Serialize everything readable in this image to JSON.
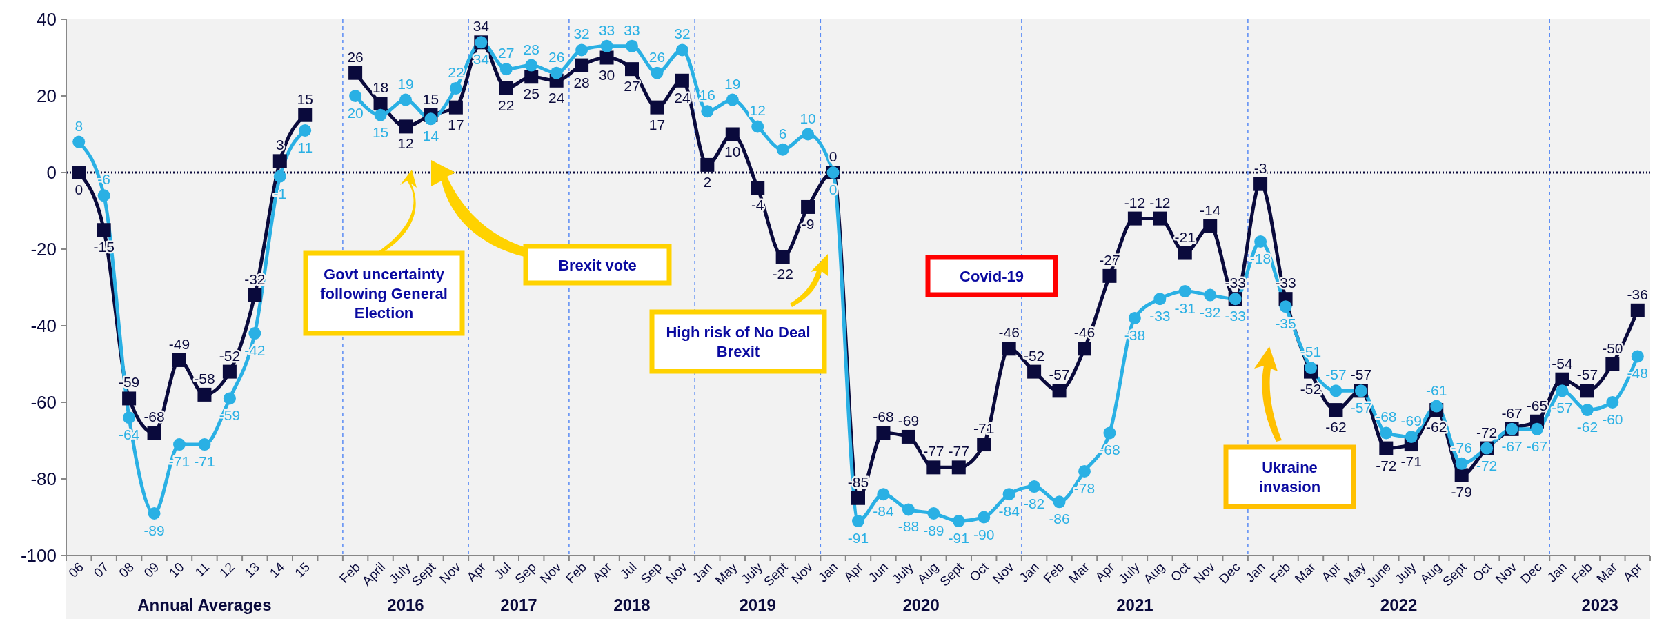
{
  "chart_data": {
    "type": "line",
    "categories": [
      "06",
      "07",
      "08",
      "09",
      "10",
      "11",
      "12",
      "13",
      "14",
      "15",
      null,
      "Feb",
      "April",
      "July",
      "Sept",
      "Nov",
      "Apr",
      "Jul",
      "Sep",
      "Nov",
      "Feb",
      "Apr",
      "Jul",
      "Sep",
      "Nov",
      "Jan",
      "May",
      "July",
      "Sept",
      "Nov",
      "Jan",
      "Apr",
      "Jun",
      "July",
      "Aug",
      "Sept",
      "Oct",
      "Nov",
      "Jan",
      "Feb",
      "Mar",
      "Apr",
      "July",
      "Aug",
      "Oct",
      "Nov",
      "Dec",
      "Jan",
      "Feb",
      "Mar",
      "Apr",
      "May",
      "June",
      "July",
      "Aug",
      "Sept",
      "Oct",
      "Nov",
      "Dec",
      "Jan",
      "Feb",
      "Mar",
      "Apr"
    ],
    "series": [
      {
        "color": "#2ab0e4",
        "marker": "circle",
        "values": [
          8,
          -6,
          -64,
          -89,
          -71,
          -71,
          -59,
          -42,
          -1,
          11,
          null,
          20,
          15,
          19,
          14,
          22,
          34,
          27,
          28,
          26,
          32,
          33,
          33,
          26,
          32,
          16,
          19,
          12,
          6,
          10,
          0,
          -91,
          -84,
          -88,
          -89,
          -91,
          -90,
          -84,
          -82,
          -86,
          -78,
          -68,
          -38,
          -33,
          -31,
          -32,
          -33,
          -18,
          -35,
          -51,
          -57,
          -57,
          -68,
          -69,
          -61,
          -76,
          -72,
          -67,
          -67,
          -57,
          -62,
          -60,
          -48
        ]
      },
      {
        "color": "#0a0a3c",
        "marker": "square",
        "values": [
          0,
          -15,
          -59,
          -68,
          -49,
          -58,
          -52,
          -32,
          3,
          15,
          null,
          26,
          18,
          12,
          15,
          17,
          34,
          22,
          25,
          24,
          28,
          30,
          27,
          17,
          24,
          2,
          10,
          -4,
          -22,
          -9,
          0,
          -85,
          -68,
          -69,
          -77,
          -77,
          -71,
          -46,
          -52,
          -57,
          -46,
          -27,
          -12,
          -12,
          -21,
          -14,
          -33,
          -3,
          -33,
          -52,
          -62,
          -57,
          -72,
          -71,
          -62,
          -79,
          -72,
          -67,
          -65,
          -54,
          -57,
          -50,
          -36
        ]
      }
    ],
    "ylim": [
      -100,
      40
    ],
    "yticks": [
      -100,
      -80,
      -60,
      -40,
      -20,
      0,
      20,
      40
    ],
    "data_labels": true,
    "ref_lines": [
      {
        "axis": "y",
        "value": 0,
        "color": "#0a0a3c",
        "line_style": "dotted"
      }
    ],
    "annotations": [
      "Annual Averages",
      "2016",
      "2017",
      "2018",
      "2019",
      "2020",
      "2021",
      "2022",
      "2023",
      "Govt uncertainty following General Election",
      "Brexit vote",
      "High risk of No Deal Brexit",
      "Covid-19",
      "Ukraine invasion"
    ]
  }
}
